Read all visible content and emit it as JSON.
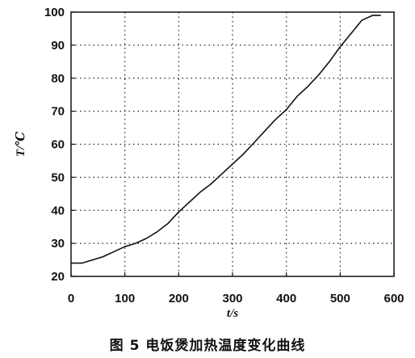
{
  "caption": "图 5  电饭煲加热温度变化曲线",
  "chart_data": {
    "type": "line",
    "title": "",
    "xlabel": "t/s",
    "ylabel": "T/℃",
    "xlim": [
      0,
      600
    ],
    "ylim": [
      20,
      100
    ],
    "x_ticks": [
      0,
      100,
      200,
      300,
      400,
      500,
      600
    ],
    "y_ticks": [
      20,
      30,
      40,
      50,
      60,
      70,
      80,
      90,
      100
    ],
    "grid": true,
    "grid_style": "dotted",
    "legend": "none",
    "series": [
      {
        "color": "#111111",
        "x": [
          0,
          20,
          40,
          60,
          80,
          100,
          120,
          140,
          160,
          180,
          200,
          220,
          240,
          260,
          280,
          300,
          320,
          340,
          360,
          380,
          400,
          420,
          440,
          460,
          480,
          500,
          520,
          540,
          560,
          575
        ],
        "y": [
          24,
          24,
          25,
          26,
          27.5,
          29,
          30,
          31.5,
          33.5,
          36,
          39.5,
          42.5,
          45.5,
          48,
          51,
          54,
          57,
          60.5,
          64,
          67.5,
          70.5,
          74.5,
          77.5,
          81,
          85,
          89.5,
          93.5,
          97.5,
          99,
          99
        ]
      }
    ]
  }
}
